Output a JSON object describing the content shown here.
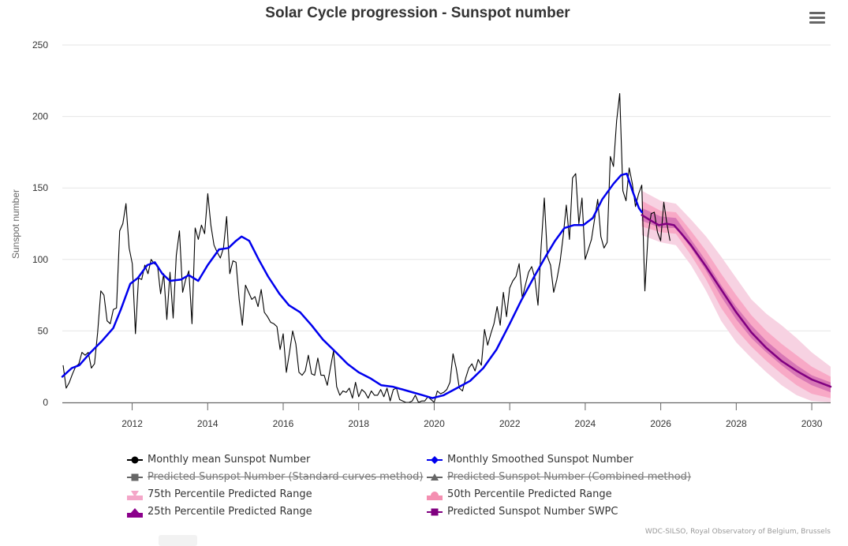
{
  "chart_data": {
    "type": "line",
    "title": "Solar Cycle progression - Sunspot number",
    "xlabel": "",
    "ylabel": "Sunspot number",
    "xlim": [
      2010.15,
      2030.5
    ],
    "ylim": [
      0,
      250
    ],
    "x_ticks": [
      2012,
      2014,
      2016,
      2018,
      2020,
      2022,
      2024,
      2026,
      2028,
      2030
    ],
    "y_ticks": [
      0,
      50,
      100,
      150,
      200,
      250
    ],
    "grid": true,
    "legend_position": "bottom",
    "credits": "WDC-SILSO, Royal Observatory of Belgium, Brussels",
    "colors": {
      "monthly_mean": "#000000",
      "smoothed": "#0000ee",
      "p75": "#f7cde0",
      "p50": "#f7a6c2",
      "p25": "#d673b3",
      "swpc": "#800080",
      "hidden": "#666666"
    },
    "series": [
      {
        "name": "Monthly mean Sunspot Number",
        "key": "monthly_mean",
        "visible": true,
        "x_start": 2010.17,
        "x_step": 0.0833,
        "values": [
          26,
          10,
          14,
          20,
          25,
          27,
          35,
          33,
          35,
          24,
          27,
          49,
          78,
          75,
          57,
          55,
          65,
          66,
          120,
          125,
          139,
          108,
          97,
          48,
          87,
          86,
          96,
          90,
          100,
          97,
          96,
          76,
          90,
          58,
          91,
          59,
          103,
          120,
          77,
          86,
          92,
          55,
          122,
          114,
          124,
          118,
          146,
          124,
          110,
          105,
          101,
          108,
          130,
          90,
          99,
          98,
          72,
          54,
          82,
          77,
          72,
          74,
          67,
          79,
          63,
          60,
          56,
          55,
          53,
          37,
          48,
          21,
          35,
          50,
          41,
          21,
          19,
          22,
          33,
          20,
          19,
          31,
          19,
          19,
          12,
          24,
          36,
          11,
          5,
          8,
          7,
          10,
          3,
          14,
          4,
          9,
          7,
          3,
          8,
          5,
          5,
          9,
          4,
          10,
          1,
          9,
          10,
          2,
          1,
          0,
          0,
          1,
          5,
          0,
          1,
          1,
          4,
          2,
          0,
          8,
          6,
          7,
          9,
          14,
          34,
          24,
          10,
          8,
          17,
          24,
          27,
          22,
          30,
          26,
          51,
          40,
          48,
          55,
          67,
          54,
          77,
          60,
          80,
          85,
          88,
          97,
          73,
          82,
          91,
          95,
          87,
          68,
          109,
          143,
          102,
          96,
          77,
          86,
          98,
          116,
          138,
          114,
          157,
          160,
          125,
          143,
          100,
          107,
          114,
          128,
          142,
          116,
          108,
          112,
          172,
          165,
          197,
          216,
          148,
          141,
          164,
          153,
          137,
          146,
          152,
          78,
          117,
          132,
          133,
          119,
          113,
          140,
          125,
          113
        ]
      },
      {
        "name": "Monthly Smoothed Sunspot Number",
        "key": "smoothed",
        "visible": true,
        "points": [
          [
            2010.15,
            18
          ],
          [
            2010.4,
            24
          ],
          [
            2010.6,
            26
          ],
          [
            2010.9,
            35
          ],
          [
            2011.2,
            43
          ],
          [
            2011.5,
            52
          ],
          [
            2011.7,
            65
          ],
          [
            2011.95,
            83
          ],
          [
            2012.15,
            87
          ],
          [
            2012.4,
            96
          ],
          [
            2012.6,
            98
          ],
          [
            2012.8,
            90
          ],
          [
            2013.0,
            85
          ],
          [
            2013.3,
            86
          ],
          [
            2013.5,
            89
          ],
          [
            2013.75,
            85
          ],
          [
            2014.0,
            96
          ],
          [
            2014.3,
            107
          ],
          [
            2014.55,
            108
          ],
          [
            2014.75,
            113
          ],
          [
            2014.9,
            116
          ],
          [
            2015.1,
            113
          ],
          [
            2015.35,
            100
          ],
          [
            2015.6,
            88
          ],
          [
            2015.9,
            76
          ],
          [
            2016.15,
            68
          ],
          [
            2016.45,
            63
          ],
          [
            2016.75,
            54
          ],
          [
            2017.05,
            44
          ],
          [
            2017.4,
            35
          ],
          [
            2017.7,
            27
          ],
          [
            2018.0,
            21
          ],
          [
            2018.3,
            17
          ],
          [
            2018.6,
            12
          ],
          [
            2018.9,
            11
          ],
          [
            2019.3,
            8
          ],
          [
            2019.7,
            5
          ],
          [
            2019.95,
            3
          ],
          [
            2020.25,
            5
          ],
          [
            2020.6,
            10
          ],
          [
            2020.95,
            15
          ],
          [
            2021.3,
            24
          ],
          [
            2021.65,
            37
          ],
          [
            2022.0,
            55
          ],
          [
            2022.3,
            71
          ],
          [
            2022.65,
            88
          ],
          [
            2022.95,
            102
          ],
          [
            2023.2,
            113
          ],
          [
            2023.45,
            122
          ],
          [
            2023.7,
            124
          ],
          [
            2023.95,
            124
          ],
          [
            2024.2,
            129
          ],
          [
            2024.45,
            142
          ],
          [
            2024.75,
            153
          ],
          [
            2024.95,
            159
          ],
          [
            2025.1,
            160
          ],
          [
            2025.25,
            148
          ],
          [
            2025.42,
            136
          ],
          [
            2025.5,
            133
          ]
        ]
      },
      {
        "name": "Predicted Sunspot Number (Standard curves method)",
        "key": "hidden_standard",
        "visible": false,
        "values": []
      },
      {
        "name": "Predicted Sunspot Number (Combined method)",
        "key": "hidden_combined",
        "visible": false,
        "values": []
      },
      {
        "name": "75th Percentile Predicted Range",
        "key": "p75",
        "visible": true,
        "x": [
          2025.5,
          2026.0,
          2026.4,
          2026.8,
          2027.2,
          2027.6,
          2028.0,
          2028.4,
          2028.8,
          2029.2,
          2029.6,
          2030.0,
          2030.5
        ],
        "low": [
          117,
          112,
          110,
          96,
          78,
          57,
          42,
          31,
          21,
          12,
          5,
          1,
          0
        ],
        "high": [
          148,
          141,
          139,
          128,
          116,
          102,
          87,
          72,
          62,
          54,
          45,
          35,
          25
        ]
      },
      {
        "name": "50th Percentile Predicted Range",
        "key": "p50",
        "visible": true,
        "x": [
          2025.5,
          2026.0,
          2026.4,
          2026.8,
          2027.2,
          2027.6,
          2028.0,
          2028.4,
          2028.8,
          2029.2,
          2029.6,
          2030.0,
          2030.5
        ],
        "low": [
          123,
          119,
          118,
          103,
          86,
          66,
          51,
          39,
          29,
          20,
          12,
          6,
          3
        ],
        "high": [
          141,
          134,
          133,
          120,
          106,
          90,
          75,
          61,
          50,
          41,
          33,
          25,
          18
        ]
      },
      {
        "name": "25th Percentile Predicted Range",
        "key": "p25",
        "visible": true,
        "x": [
          2025.5,
          2026.0,
          2026.4,
          2026.8,
          2027.2,
          2027.6,
          2028.0,
          2028.4,
          2028.8,
          2029.2,
          2029.6,
          2030.0,
          2030.5
        ],
        "low": [
          127,
          122,
          122,
          108,
          92,
          74,
          58,
          45,
          35,
          26,
          18,
          12,
          7
        ],
        "high": [
          136,
          130,
          129,
          114,
          99,
          82,
          67,
          54,
          43,
          34,
          26,
          19,
          14
        ]
      },
      {
        "name": "Predicted Sunspot Number SWPC",
        "key": "swpc",
        "visible": true,
        "points": [
          [
            2025.5,
            131
          ],
          [
            2025.75,
            127
          ],
          [
            2025.95,
            124
          ],
          [
            2026.15,
            125
          ],
          [
            2026.35,
            124
          ],
          [
            2026.55,
            118
          ],
          [
            2026.8,
            110
          ],
          [
            2027.2,
            95
          ],
          [
            2027.6,
            79
          ],
          [
            2028.0,
            63
          ],
          [
            2028.4,
            49
          ],
          [
            2028.8,
            38
          ],
          [
            2029.2,
            29
          ],
          [
            2029.6,
            22
          ],
          [
            2030.0,
            16
          ],
          [
            2030.5,
            11
          ]
        ]
      }
    ]
  },
  "legend": {
    "items": [
      {
        "label": "Monthly mean Sunspot Number",
        "icon": "line-circle-marker",
        "color": "#000000",
        "hidden": false
      },
      {
        "label": "Monthly Smoothed Sunspot Number",
        "icon": "line-diamond-marker",
        "color": "#0000ee",
        "hidden": false
      },
      {
        "label": "Predicted Sunspot Number (Standard curves method)",
        "icon": "line-square-marker",
        "color": "#666666",
        "hidden": true
      },
      {
        "label": "Predicted Sunspot Number (Combined method)",
        "icon": "line-triangle-marker",
        "color": "#666666",
        "hidden": true
      },
      {
        "label": "75th Percentile Predicted Range",
        "icon": "area-triangle-down",
        "color": "#f4a6c8",
        "hidden": false
      },
      {
        "label": "50th Percentile Predicted Range",
        "icon": "area-circle",
        "color": "#f48fb1",
        "hidden": false
      },
      {
        "label": "25th Percentile Predicted Range",
        "icon": "area-triangle-up",
        "color": "#8b008b",
        "hidden": false
      },
      {
        "label": "Predicted Sunspot Number SWPC",
        "icon": "line-square-marker",
        "color": "#800080",
        "hidden": false
      }
    ]
  },
  "toolbar": {
    "menu_icon": "hamburger-menu-icon"
  }
}
